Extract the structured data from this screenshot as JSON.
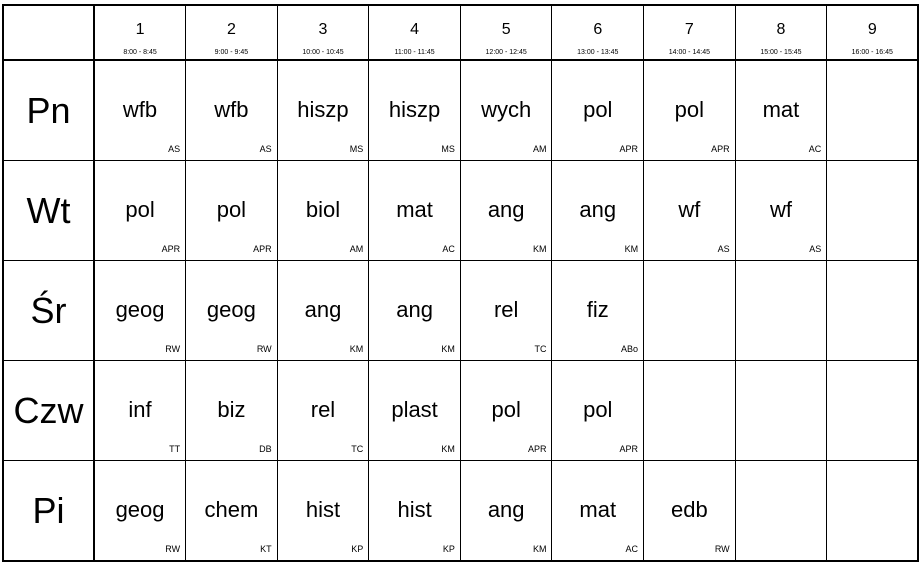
{
  "periods": [
    {
      "num": "1",
      "time": "8:00 - 8:45"
    },
    {
      "num": "2",
      "time": "9:00 - 9:45"
    },
    {
      "num": "3",
      "time": "10:00 - 10:45"
    },
    {
      "num": "4",
      "time": "11:00 - 11:45"
    },
    {
      "num": "5",
      "time": "12:00 - 12:45"
    },
    {
      "num": "6",
      "time": "13:00 - 13:45"
    },
    {
      "num": "7",
      "time": "14:00 - 14:45"
    },
    {
      "num": "8",
      "time": "15:00 - 15:45"
    },
    {
      "num": "9",
      "time": "16:00 - 16:45"
    }
  ],
  "days": [
    {
      "name": "Pn",
      "lessons": [
        [
          "wfb",
          "AS"
        ],
        [
          "wfb",
          "AS"
        ],
        [
          "hiszp",
          "MS"
        ],
        [
          "hiszp",
          "MS"
        ],
        [
          "wych",
          "AM"
        ],
        [
          "pol",
          "APR"
        ],
        [
          "pol",
          "APR"
        ],
        [
          "mat",
          "AC"
        ],
        [
          "",
          ""
        ]
      ]
    },
    {
      "name": "Wt",
      "lessons": [
        [
          "pol",
          "APR"
        ],
        [
          "pol",
          "APR"
        ],
        [
          "biol",
          "AM"
        ],
        [
          "mat",
          "AC"
        ],
        [
          "ang",
          "KM"
        ],
        [
          "ang",
          "KM"
        ],
        [
          "wf",
          "AS"
        ],
        [
          "wf",
          "AS"
        ],
        [
          "",
          ""
        ]
      ]
    },
    {
      "name": "Śr",
      "lessons": [
        [
          "geog",
          "RW"
        ],
        [
          "geog",
          "RW"
        ],
        [
          "ang",
          "KM"
        ],
        [
          "ang",
          "KM"
        ],
        [
          "rel",
          "TC"
        ],
        [
          "fiz",
          "ABo"
        ],
        [
          "",
          ""
        ],
        [
          "",
          ""
        ],
        [
          "",
          ""
        ]
      ]
    },
    {
      "name": "Czw",
      "lessons": [
        [
          "inf",
          "TT"
        ],
        [
          "biz",
          "DB"
        ],
        [
          "rel",
          "TC"
        ],
        [
          "plast",
          "KM"
        ],
        [
          "pol",
          "APR"
        ],
        [
          "pol",
          "APR"
        ],
        [
          "",
          ""
        ],
        [
          "",
          ""
        ],
        [
          "",
          ""
        ]
      ]
    },
    {
      "name": "Pi",
      "lessons": [
        [
          "geog",
          "RW"
        ],
        [
          "chem",
          "KT"
        ],
        [
          "hist",
          "KP"
        ],
        [
          "hist",
          "KP"
        ],
        [
          "ang",
          "KM"
        ],
        [
          "mat",
          "AC"
        ],
        [
          "edb",
          "RW"
        ],
        [
          "",
          ""
        ],
        [
          "",
          ""
        ]
      ]
    }
  ]
}
